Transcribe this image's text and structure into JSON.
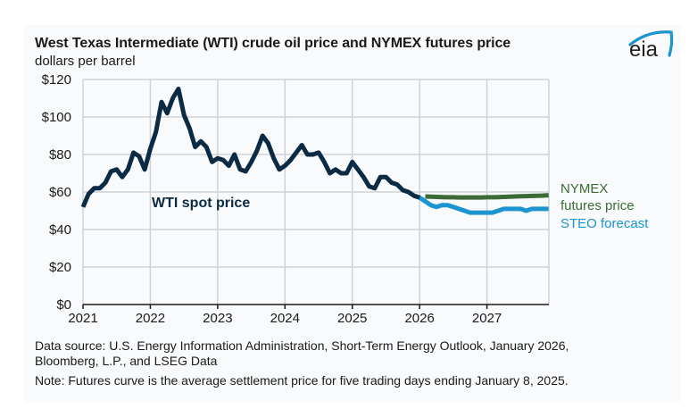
{
  "header": {
    "title": "West Texas Intermediate (WTI) crude oil price and NYMEX futures price",
    "subtitle": "dollars per barrel",
    "logo_text": "eia"
  },
  "footer": {
    "source_line1": "Data source: U.S. Energy Information Administration, Short-Term Energy Outlook, January 2026,",
    "source_line2": "Bloomberg, L.P., and LSEG Data",
    "note": "Note: Futures curve is the average settlement price for five trading days ending January 8, 2025."
  },
  "colors": {
    "wti": "#0b2a44",
    "nymex": "#3d6b35",
    "steo": "#1c94d0",
    "grid": "#cfd2d5",
    "axis": "#1a1a1a",
    "logo_arc": "#1c94d0"
  },
  "chart_data": {
    "type": "line",
    "title": "West Texas Intermediate (WTI) crude oil price and NYMEX futures price",
    "ylabel": "dollars per barrel",
    "xlabel": "",
    "ylim": [
      0,
      120
    ],
    "xlim": [
      2021.0,
      2027.92
    ],
    "y_ticks": [
      0,
      20,
      40,
      60,
      80,
      100,
      120
    ],
    "y_tick_labels": [
      "$0",
      "$20",
      "$40",
      "$60",
      "$80",
      "$100",
      "$120"
    ],
    "x_ticks": [
      2021,
      2022,
      2023,
      2024,
      2025,
      2026,
      2027
    ],
    "x_tick_labels": [
      "2021",
      "2022",
      "2023",
      "2024",
      "2025",
      "2026",
      "2027"
    ],
    "grid": true,
    "legend": "right",
    "series": [
      {
        "name": "WTI spot price",
        "label": "WTI spot price",
        "start": "2021-01",
        "frequency": "monthly",
        "values": [
          52,
          59,
          62,
          62,
          65,
          71,
          72,
          68,
          72,
          81,
          79,
          72,
          83,
          92,
          108,
          102,
          110,
          115,
          101,
          94,
          84,
          87,
          84,
          76,
          78,
          77,
          74,
          80,
          72,
          71,
          76,
          82,
          90,
          86,
          78,
          72,
          74,
          77,
          81,
          85,
          80,
          80,
          81,
          76,
          70,
          72,
          70,
          70,
          76,
          72,
          68,
          63,
          62,
          68,
          68,
          65,
          64,
          61,
          60,
          58,
          57
        ]
      },
      {
        "name": "STEO forecast",
        "label": "STEO forecast",
        "start": "2025-12",
        "frequency": "monthly",
        "values": [
          58,
          57,
          55,
          53,
          52,
          53,
          53,
          52,
          51,
          50,
          49,
          49,
          49,
          49,
          49,
          50,
          51,
          51,
          51,
          51,
          50,
          51,
          51,
          51,
          51
        ]
      },
      {
        "name": "NYMEX futures price",
        "label_line1": "NYMEX",
        "label_line2": "futures price",
        "start": "2026-02",
        "frequency": "monthly",
        "values": [
          57.6,
          57.5,
          57.4,
          57.3,
          57.2,
          57.2,
          57.1,
          57.1,
          57.1,
          57.1,
          57.1,
          57.2,
          57.2,
          57.3,
          57.4,
          57.5,
          57.6,
          57.7,
          57.8,
          57.9,
          58.0,
          58.1,
          58.3
        ]
      }
    ],
    "annotations": [
      "WTI spot price"
    ]
  }
}
